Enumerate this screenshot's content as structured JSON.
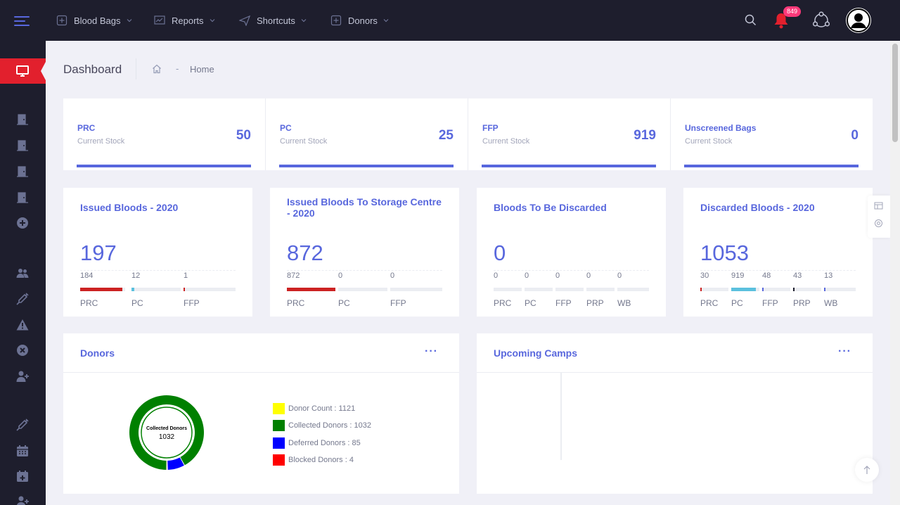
{
  "topbar": {
    "menu": [
      {
        "label": "Blood Bags",
        "icon": "blood-bag-icon"
      },
      {
        "label": "Reports",
        "icon": "reports-icon"
      },
      {
        "label": "Shortcuts",
        "icon": "shortcuts-icon"
      },
      {
        "label": "Donors",
        "icon": "donors-icon"
      }
    ],
    "notification_count": "849"
  },
  "subheader": {
    "title": "Dashboard",
    "breadcrumb_sep": "-",
    "breadcrumb_item": "Home"
  },
  "stock": [
    {
      "title": "PRC",
      "subtitle": "Current Stock",
      "value": "50"
    },
    {
      "title": "PC",
      "subtitle": "Current Stock",
      "value": "25"
    },
    {
      "title": "FFP",
      "subtitle": "Current Stock",
      "value": "919"
    },
    {
      "title": "Unscreened Bags",
      "subtitle": "Current Stock",
      "value": "0"
    }
  ],
  "stats": [
    {
      "title": "Issued Bloods - 2020",
      "total": "197",
      "cols": [
        {
          "label": "PRC",
          "value": "184",
          "fill": 0.93,
          "color": "#cc2222"
        },
        {
          "label": "PC",
          "value": "12",
          "fill": 0.06,
          "color": "#5bc0de"
        },
        {
          "label": "FFP",
          "value": "1",
          "fill": 0.01,
          "color": "#cc2222"
        }
      ]
    },
    {
      "title": "Issued Bloods To Storage Centre - 2020",
      "total": "872",
      "cols": [
        {
          "label": "PRC",
          "value": "872",
          "fill": 1.0,
          "color": "#cc2222"
        },
        {
          "label": "PC",
          "value": "0",
          "fill": 0,
          "color": "#5bc0de"
        },
        {
          "label": "FFP",
          "value": "0",
          "fill": 0,
          "color": "#cc2222"
        }
      ]
    },
    {
      "title": "Bloods To Be Discarded",
      "total": "0",
      "cols": [
        {
          "label": "PRC",
          "value": "0",
          "fill": 0,
          "color": "#cc2222"
        },
        {
          "label": "PC",
          "value": "0",
          "fill": 0,
          "color": "#5bc0de"
        },
        {
          "label": "FFP",
          "value": "0",
          "fill": 0,
          "color": "#5867dd"
        },
        {
          "label": "PRP",
          "value": "0",
          "fill": 0,
          "color": "#5867dd"
        },
        {
          "label": "WB",
          "value": "0",
          "fill": 0,
          "color": "#5867dd"
        }
      ]
    },
    {
      "title": "Discarded Bloods - 2020",
      "total": "1053",
      "cols": [
        {
          "label": "PRC",
          "value": "30",
          "fill": 0.03,
          "color": "#cc2222"
        },
        {
          "label": "PC",
          "value": "919",
          "fill": 0.87,
          "color": "#5bc0de"
        },
        {
          "label": "FFP",
          "value": "48",
          "fill": 0.05,
          "color": "#5867dd"
        },
        {
          "label": "PRP",
          "value": "43",
          "fill": 0.04,
          "color": "#1e1e2d"
        },
        {
          "label": "WB",
          "value": "13",
          "fill": 0.01,
          "color": "#5867dd"
        }
      ]
    }
  ],
  "donors": {
    "title": "Donors",
    "menu_dots": "···",
    "center_label": "Collected Donors",
    "center_value": "1032",
    "chart_data": {
      "type": "pie",
      "values": [
        1032,
        85,
        4
      ],
      "colors": [
        "#008000",
        "#0000ff",
        "#ff0000"
      ]
    },
    "legend": [
      {
        "label": "Donor Count : 1121",
        "color": "#ffff00"
      },
      {
        "label": "Collected Donors : 1032",
        "color": "#008000"
      },
      {
        "label": "Deferred Donors : 85",
        "color": "#0000ff"
      },
      {
        "label": "Blocked Donors : 4",
        "color": "#ff0000"
      }
    ]
  },
  "camps": {
    "title": "Upcoming Camps",
    "menu_dots": "···"
  },
  "colors": {
    "accent": "#5867dd",
    "danger": "#e2202d",
    "sidebar": "#1e1e2d",
    "notification": "#e2202d"
  }
}
